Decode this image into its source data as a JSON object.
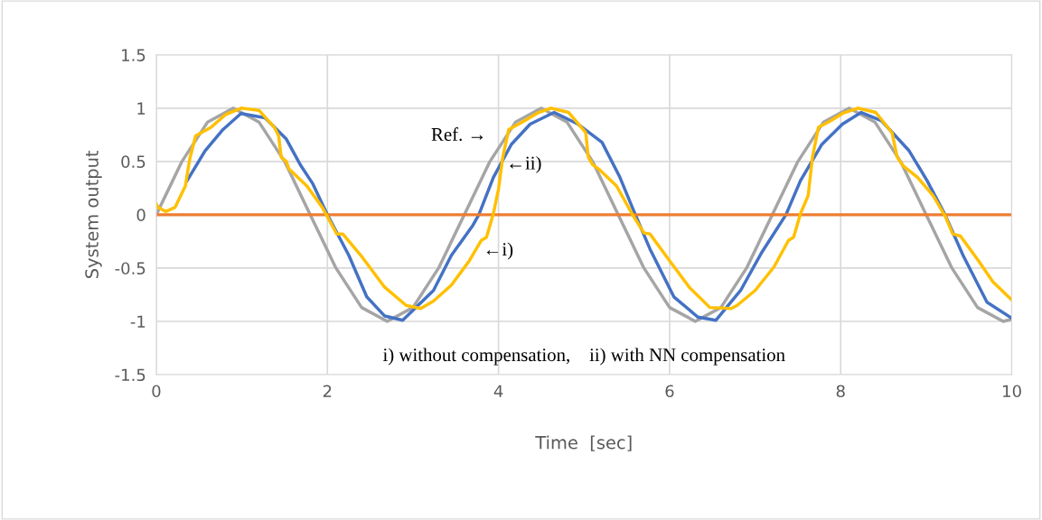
{
  "chart_data": {
    "type": "line",
    "xlabel": "Time  [sec]",
    "ylabel": "System output",
    "xlim": [
      0,
      10
    ],
    "xticks": [
      0,
      2,
      4,
      6,
      8,
      10
    ],
    "ylim": [
      -1.5,
      1.5
    ],
    "yticks": [
      -1.5,
      -1,
      -0.5,
      0,
      0.5,
      1,
      1.5
    ],
    "grid": true,
    "legend": false,
    "marker": "none",
    "line_style": "solid",
    "series": [
      {
        "color": "#a5a5a5",
        "x": [
          0,
          0.3,
          0.6,
          0.9,
          1.2,
          1.5,
          1.8,
          2.1,
          2.4,
          2.7,
          3.0,
          3.3,
          3.6,
          3.9,
          4.2,
          4.5,
          4.8,
          5.1,
          5.4,
          5.7,
          6.0,
          6.3,
          6.6,
          6.9,
          7.2,
          7.5,
          7.8,
          8.1,
          8.4,
          8.7,
          9.0,
          9.3,
          9.6,
          9.9,
          10
        ],
        "values": [
          0,
          0.5,
          0.87,
          1,
          0.87,
          0.5,
          0,
          -0.5,
          -0.87,
          -1,
          -0.87,
          -0.5,
          0,
          0.5,
          0.87,
          1,
          0.87,
          0.5,
          0,
          -0.5,
          -0.87,
          -1,
          -0.87,
          -0.5,
          0,
          0.5,
          0.87,
          1,
          0.87,
          0.5,
          0,
          -0.5,
          -0.87,
          -1,
          -0.98
        ]
      },
      {
        "color": "#4472c4",
        "x": [
          0.36,
          0.57,
          0.78,
          0.99,
          1.27,
          1.52,
          1.69,
          1.83,
          2.0,
          2.25,
          2.46,
          2.67,
          2.88,
          3.24,
          3.45,
          3.7,
          3.77,
          3.94,
          4.15,
          4.37,
          4.65,
          4.93,
          5.21,
          5.42,
          5.6,
          5.77,
          6.05,
          6.33,
          6.54,
          6.83,
          7.08,
          7.36,
          7.53,
          7.78,
          8.02,
          8.24,
          8.48,
          8.8,
          9.01,
          9.22,
          9.43,
          9.71,
          10
        ],
        "values": [
          0.32,
          0.6,
          0.8,
          0.95,
          0.91,
          0.71,
          0.46,
          0.29,
          0,
          -0.38,
          -0.77,
          -0.95,
          -0.99,
          -0.71,
          -0.38,
          -0.1,
          0,
          0.35,
          0.66,
          0.85,
          0.96,
          0.85,
          0.68,
          0.35,
          0,
          -0.32,
          -0.77,
          -0.96,
          -0.99,
          -0.71,
          -0.35,
          0,
          0.32,
          0.66,
          0.85,
          0.96,
          0.88,
          0.6,
          0.32,
          0,
          -0.38,
          -0.82,
          -0.97
        ]
      },
      {
        "color": "#ed7d31",
        "x": [
          0,
          10
        ],
        "values": [
          0,
          0
        ]
      },
      {
        "color": "#ffc000",
        "x": [
          0,
          0.02,
          0.11,
          0.22,
          0.34,
          0.39,
          0.46,
          0.64,
          0.81,
          0.99,
          1.2,
          1.38,
          1.43,
          1.46,
          1.52,
          1.55,
          1.76,
          1.94,
          2.11,
          2.18,
          2.39,
          2.67,
          2.92,
          3.09,
          3.24,
          3.45,
          3.66,
          3.8,
          3.86,
          3.94,
          4.0,
          4.05,
          4.12,
          4.3,
          4.47,
          4.61,
          4.82,
          5.02,
          5.05,
          5.1,
          5.17,
          5.38,
          5.56,
          5.7,
          5.77,
          5.98,
          6.23,
          6.47,
          6.72,
          6.79,
          7.0,
          7.22,
          7.39,
          7.45,
          7.53,
          7.62,
          7.67,
          7.74,
          7.88,
          8.02,
          8.2,
          8.41,
          8.6,
          8.66,
          8.73,
          8.9,
          9.08,
          9.22,
          9.31,
          9.4,
          9.61,
          9.78,
          10
        ],
        "values": [
          0.1,
          0.07,
          0.03,
          0.07,
          0.27,
          0.52,
          0.74,
          0.82,
          0.94,
          1.0,
          0.98,
          0.82,
          0.74,
          0.54,
          0.5,
          0.43,
          0.27,
          0.07,
          -0.18,
          -0.18,
          -0.38,
          -0.68,
          -0.85,
          -0.88,
          -0.81,
          -0.66,
          -0.43,
          -0.24,
          -0.21,
          0.01,
          0.24,
          0.54,
          0.8,
          0.88,
          0.96,
          1.0,
          0.96,
          0.77,
          0.54,
          0.47,
          0.43,
          0.27,
          0.01,
          -0.17,
          -0.18,
          -0.41,
          -0.68,
          -0.87,
          -0.88,
          -0.85,
          -0.71,
          -0.49,
          -0.24,
          -0.21,
          0.01,
          0.18,
          0.54,
          0.82,
          0.88,
          0.95,
          1.0,
          0.96,
          0.77,
          0.54,
          0.46,
          0.35,
          0.18,
          -0.01,
          -0.18,
          -0.2,
          -0.43,
          -0.63,
          -0.8
        ]
      }
    ],
    "annotations": [
      "Ref. →",
      {
        "text": "←ii)",
        "x": 4.07,
        "y": 0.47
      },
      {
        "text": "←i)",
        "x": 3.8,
        "y": -0.34
      },
      "i) without compensation,    ii) with NN compensation"
    ]
  }
}
